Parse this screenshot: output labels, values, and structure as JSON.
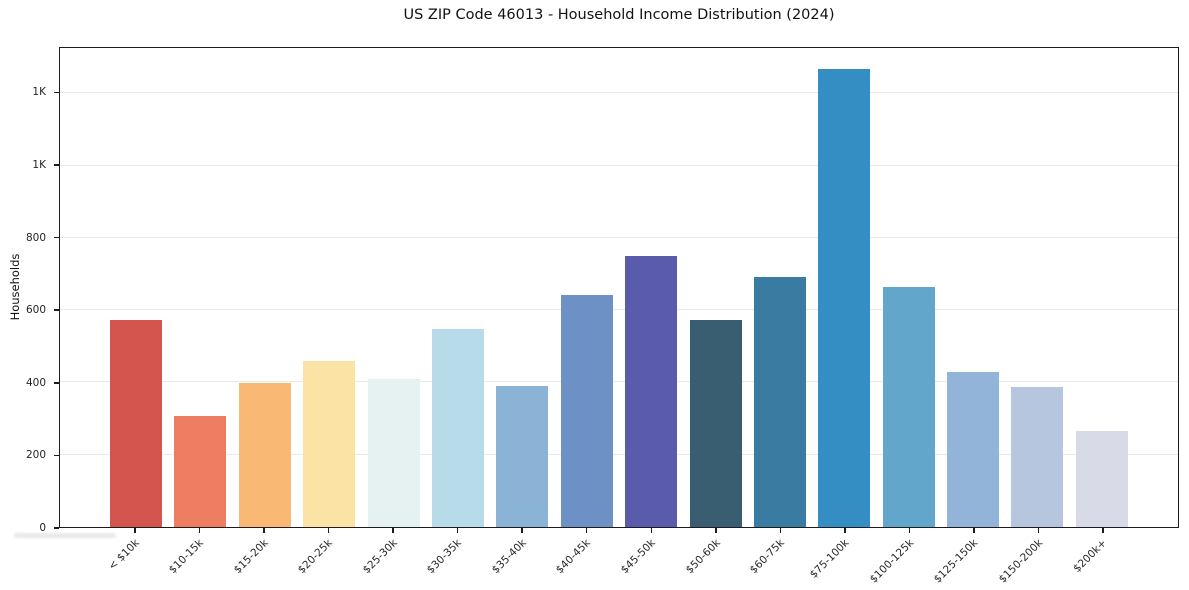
{
  "figure": {
    "background": "#ffffff",
    "axis_color": "#1c1c1c",
    "grid_color": "#e9e9e9",
    "text_color": "#262626"
  },
  "chart_data": {
    "type": "bar",
    "title": "US ZIP Code 46013 - Household Income Distribution (2024)",
    "xlabel": "",
    "ylabel": "Households",
    "categories": [
      "< $10k",
      "$10-15k",
      "$15-20k",
      "$20-25k",
      "$25-30k",
      "$30-35k",
      "$35-40k",
      "$40-45k",
      "$45-50k",
      "$50-60k",
      "$60-75k",
      "$75-100k",
      "$100-125k",
      "$125-150k",
      "$150-200k",
      "$200k+"
    ],
    "values": [
      573,
      306,
      397,
      458,
      410,
      548,
      390,
      641,
      750,
      572,
      691,
      1266,
      663,
      430,
      386,
      265
    ],
    "bar_colors": [
      "#d4544e",
      "#ee7e62",
      "#f9b873",
      "#fbe3a6",
      "#e6f1f2",
      "#b7dbe9",
      "#8bb3d6",
      "#6d90c5",
      "#5a5bab",
      "#395e71",
      "#3a7ba1",
      "#348ec3",
      "#62a6cc",
      "#92b4d8",
      "#b5c6de",
      "#d8dae8"
    ],
    "ylim": [
      0,
      1325
    ],
    "yticks": [
      {
        "value": 0,
        "label": "0"
      },
      {
        "value": 200,
        "label": "200"
      },
      {
        "value": 400,
        "label": "400"
      },
      {
        "value": 600,
        "label": "600"
      },
      {
        "value": 800,
        "label": "800"
      },
      {
        "value": 1000,
        "label": "1K"
      },
      {
        "value": 1200,
        "label": "1K"
      }
    ],
    "grid": true,
    "legend": false
  }
}
